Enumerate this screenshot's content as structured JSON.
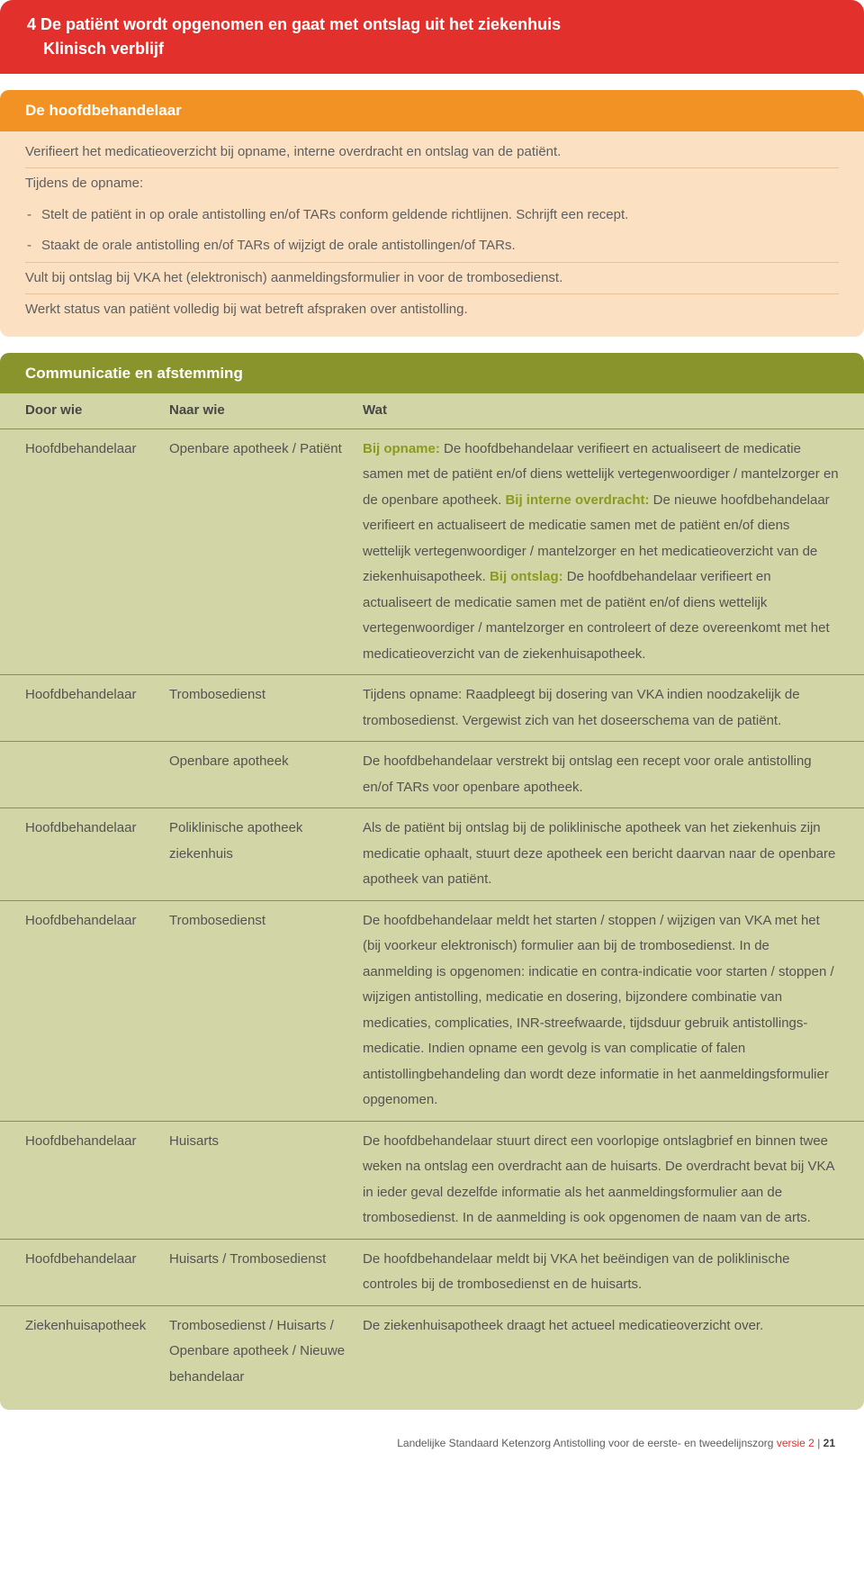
{
  "colors": {
    "red": "#e2302d",
    "orange_head": "#f29224",
    "orange_body": "#fbe0c2",
    "olive_head": "#89942c",
    "olive_body": "#d2d6a6",
    "olive_rule": "#8a8f59",
    "accent_text": "#8a9a1f",
    "body_text": "#535353"
  },
  "header": {
    "prefix": "4",
    "title": "De patiënt wordt opgenomen en gaat met ontslag uit het ziekenhuis",
    "subtitle": "Klinisch verblijf"
  },
  "orange": {
    "title": "De hoofdbehandelaar",
    "p1": "Verifieert het medicatieoverzicht bij opname, interne overdracht en ontslag van de patiënt.",
    "p2": "Tijdens de opname:",
    "b1": "Stelt de patiënt in op orale antistolling en/of TARs conform geldende richtlijnen. Schrijft een recept.",
    "b2": "Staakt de orale antistolling en/of TARs of wijzigt de orale antistollingen/of TARs.",
    "p3": "Vult bij ontslag bij VKA het (elektronisch) aanmeldingsformulier in voor de trombosedienst.",
    "p4": "Werkt status van patiënt volledig bij wat betreft afspraken over antistolling."
  },
  "olive": {
    "title": "Communicatie en afstemming",
    "head": {
      "c1": "Door wie",
      "c2": "Naar wie",
      "c3": "Wat"
    },
    "rows": [
      {
        "c1": "Hoofdbehandelaar",
        "c2": "Openbare apotheek / Patiënt",
        "accent1": "Bij opname:",
        "t1": " De hoofdbehandelaar verifieert en actualiseert de medicatie samen met de patiënt en/of diens wettelijk vertegenwoordiger / mantelzorger en de openbare apotheek. ",
        "accent2": "Bij interne overdracht:",
        "t2": " De nieuwe hoofdbehandelaar verifieert en actualiseert de medicatie samen met de patiënt en/of diens wettelijk vertegenwoordiger / mantelzorger en het medicatieoverzicht van de ziekenhuisapotheek. ",
        "accent3": "Bij ontslag:",
        "t3": " De hoofdbehandelaar verifieert en actualiseert de medicatie samen met de patiënt en/of diens wettelijk vertegenwoordiger / mantelzorger en controleert of deze overeenkomt met het medicatieoverzicht van de ziekenhuis­apotheek."
      },
      {
        "c1": "Hoofdbehandelaar",
        "c2": "Trombosedienst",
        "t": "Tijdens opname: Raadpleegt bij dosering van VKA indien noodzakelijk de trombosedienst. Vergewist zich van het doseerschema van de patiënt."
      },
      {
        "c1": "",
        "c2": "Openbare apotheek",
        "t": "De hoofdbehandelaar verstrekt bij ontslag een recept voor orale antistolling en/of TARs voor openbare apotheek."
      },
      {
        "c1": "Hoofdbehandelaar",
        "c2": "Poliklinische apotheek ziekenhuis",
        "t": "Als de patiënt bij ontslag bij de poliklinische apotheek van het ziekenhuis zijn medicatie ophaalt, stuurt deze apotheek een bericht daarvan naar de openbare apotheek van patiënt."
      },
      {
        "c1": "Hoofdbehandelaar",
        "c2": "Trombosedienst",
        "t": "De hoofdbehandelaar meldt het starten / stoppen / wijzigen van VKA met het (bij voorkeur elektronisch) formulier aan bij de trombosedienst. In de aanmelding is opgenomen: indicatie en contra-indicatie voor starten / stoppen / wijzigen antistolling, medicatie en dosering, bijzondere combinatie van medicaties, complicaties, INR-streefwaarde, tijdsduur gebruik antistollings­medicatie. Indien opname een gevolg is van complicatie of falen antistollingbehandeling dan wordt deze informatie in het aanmeldingsformulier opgenomen."
      },
      {
        "c1": "Hoofdbehandelaar",
        "c2": "Huisarts",
        "t": "De hoofdbehandelaar stuurt direct een voorlopige ontslagbrief en binnen twee weken na ontslag een overdracht aan de huisarts. De overdracht bevat bij VKA in ieder geval dezelfde informatie als het aanmeldingsformulier aan de trombosedienst. In de aanmelding is ook opgenomen de naam van de arts."
      },
      {
        "c1": "Hoofdbehandelaar",
        "c2": "Huisarts / Trombose­dienst",
        "t": "De hoofdbehandelaar meldt bij VKA het beëindigen van de poliklinische controles bij de trombosedienst en de huisarts."
      },
      {
        "c1": "Ziekenhuis­apotheek",
        "c2": "Trombosedienst / Huisarts / Openbare apotheek / Nieuwe behandelaar",
        "t": "De ziekenhuisapotheek draagt het actueel medicatieoverzicht over."
      }
    ]
  },
  "footer": {
    "text": "Landelijke Standaard Ketenzorg Antistolling voor de eerste- en tweedelijnszorg ",
    "version": "versie 2",
    "sep": " | ",
    "page": "21"
  }
}
